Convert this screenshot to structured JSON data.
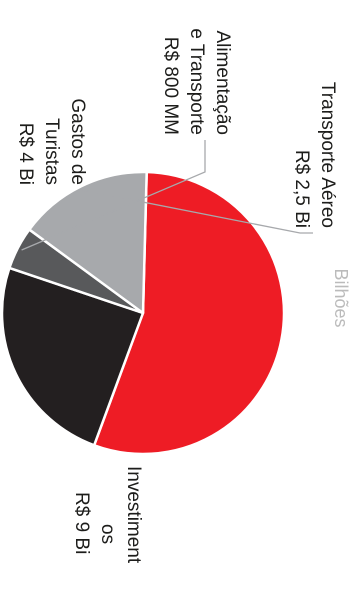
{
  "chart_data": {
    "type": "pie",
    "title": "",
    "header_partial": "Bilhões",
    "slices": [
      {
        "label_lines": [
          "Investiment",
          "os",
          "R$ 9 Bi"
        ],
        "value": 9.0,
        "color": "#ee1c25"
      },
      {
        "label_lines": [
          "Gastos de",
          "Turistas",
          "R$ 4 Bi"
        ],
        "value": 4.0,
        "color": "#231f20"
      },
      {
        "label_lines": [
          "Alimentação",
          "e Transporte",
          "R$ 800 MM"
        ],
        "value": 0.8,
        "color": "#58595b"
      },
      {
        "label_lines": [
          "Transporte Aéreo",
          "R$ 2,5 Bi"
        ],
        "value": 2.5,
        "color": "#a7a9ac"
      }
    ]
  }
}
